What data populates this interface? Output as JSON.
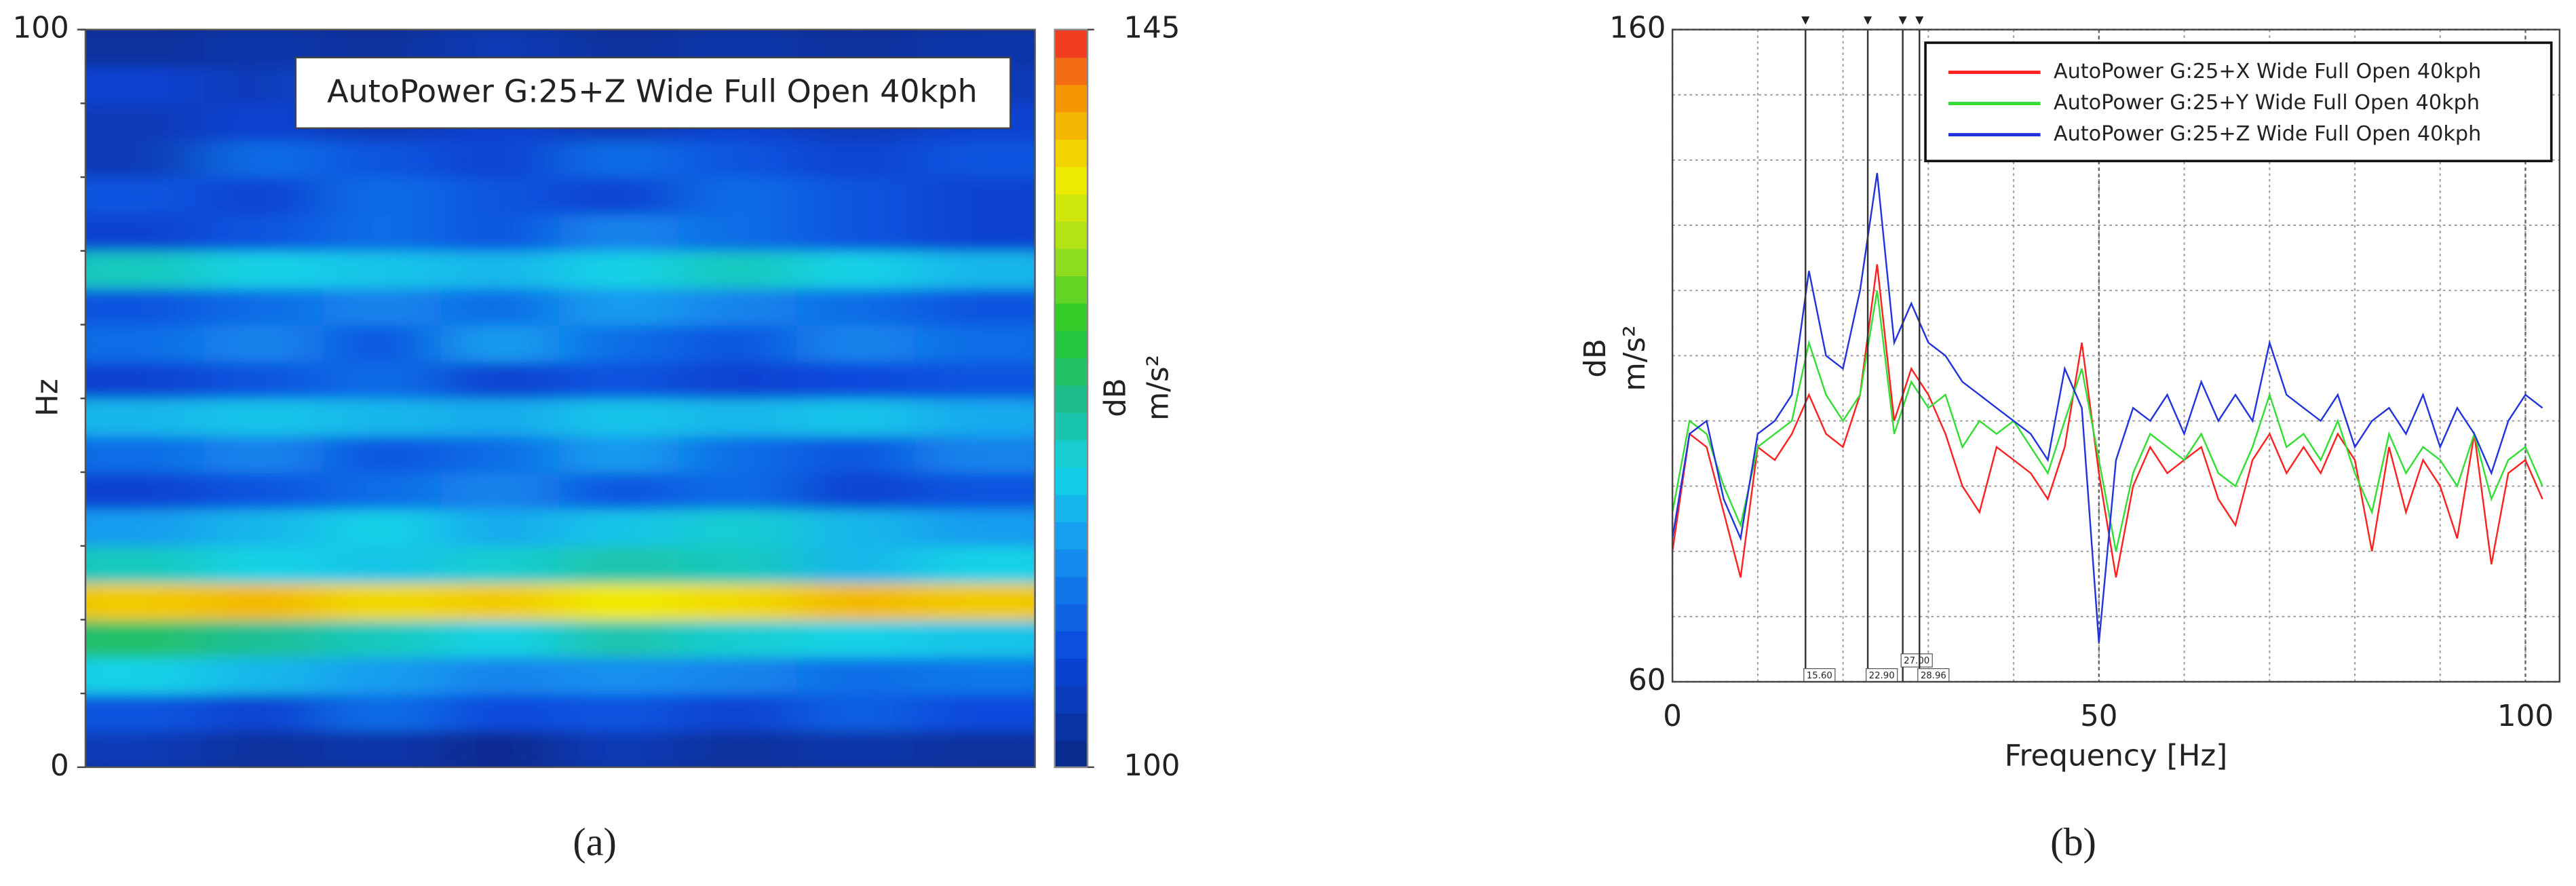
{
  "chart_data": [
    {
      "type": "heatmap",
      "title": "AutoPower G:25+Z Wide Full Open 40kph",
      "ylabel": "Hz",
      "colorbar_label": [
        "dB",
        "m/s²"
      ],
      "panel_label": "(a)",
      "ylim": [
        0,
        100
      ],
      "yticks": [
        0,
        100
      ],
      "clim": [
        100,
        145
      ],
      "cticks": [
        100,
        145
      ],
      "z": [
        [
          104,
          102,
          103,
          101,
          104,
          102,
          103,
          102
        ],
        [
          108,
          106,
          110,
          107,
          108,
          106,
          109,
          107
        ],
        [
          118,
          116,
          114,
          112,
          113,
          112,
          110,
          111
        ],
        [
          124,
          122,
          120,
          118,
          121,
          119,
          118,
          117
        ],
        [
          138,
          139,
          137,
          138,
          136,
          137,
          139,
          138
        ],
        [
          120,
          118,
          117,
          119,
          121,
          120,
          116,
          118
        ],
        [
          114,
          116,
          118,
          115,
          117,
          119,
          116,
          114
        ],
        [
          106,
          108,
          110,
          112,
          108,
          110,
          106,
          108
        ],
        [
          110,
          112,
          108,
          110,
          114,
          110,
          108,
          112
        ],
        [
          116,
          117,
          116,
          115,
          117,
          116,
          117,
          115
        ],
        [
          106,
          108,
          110,
          106,
          108,
          106,
          107,
          108
        ],
        [
          110,
          112,
          108,
          114,
          110,
          108,
          112,
          110
        ],
        [
          108,
          110,
          112,
          110,
          114,
          112,
          110,
          108
        ],
        [
          120,
          118,
          117,
          116,
          118,
          120,
          118,
          116
        ],
        [
          106,
          108,
          110,
          108,
          112,
          110,
          108,
          106
        ],
        [
          108,
          106,
          110,
          108,
          106,
          110,
          108,
          106
        ],
        [
          104,
          110,
          108,
          106,
          110,
          108,
          106,
          108
        ],
        [
          104,
          106,
          104,
          106,
          104,
          106,
          104,
          106
        ],
        [
          106,
          104,
          108,
          104,
          106,
          104,
          108,
          104
        ],
        [
          102,
          103,
          102,
          104,
          102,
          103,
          102,
          103
        ]
      ]
    },
    {
      "type": "line",
      "xlabel": "Frequency [Hz]",
      "ylabel": [
        "dB",
        "m/s²"
      ],
      "panel_label": "(b)",
      "xlim": [
        0,
        104
      ],
      "ylim": [
        60,
        160
      ],
      "xticks": [
        0,
        50,
        100
      ],
      "yticks": [
        60,
        160
      ],
      "grid": true,
      "legend": "upper right",
      "cursors": [
        {
          "value": 15.6,
          "label": "15.60"
        },
        {
          "value": 22.9,
          "label": "22.90"
        },
        {
          "value": 27.0,
          "label": "27.00"
        },
        {
          "value": 28.96,
          "label": "28.96"
        }
      ],
      "x": [
        0,
        2,
        4,
        6,
        8,
        10,
        12,
        14,
        16,
        18,
        20,
        22,
        24,
        26,
        28,
        30,
        32,
        34,
        36,
        38,
        40,
        42,
        44,
        46,
        48,
        50,
        52,
        54,
        56,
        58,
        60,
        62,
        64,
        66,
        68,
        70,
        72,
        74,
        76,
        78,
        80,
        82,
        84,
        86,
        88,
        90,
        92,
        94,
        96,
        98,
        100,
        102
      ],
      "series": [
        {
          "name": "AutoPower G:25+X Wide Full Open 40kph",
          "color": "#ff2020",
          "values": [
            80,
            98,
            96,
            86,
            76,
            96,
            94,
            98,
            104,
            98,
            96,
            104,
            124,
            100,
            108,
            104,
            98,
            90,
            86,
            96,
            94,
            92,
            88,
            96,
            112,
            92,
            76,
            90,
            96,
            92,
            94,
            96,
            88,
            84,
            94,
            98,
            92,
            96,
            92,
            98,
            94,
            80,
            96,
            86,
            94,
            90,
            82,
            98,
            78,
            92,
            94,
            88
          ]
        },
        {
          "name": "AutoPower G:25+Y Wide Full Open 40kph",
          "color": "#33dd33",
          "values": [
            86,
            100,
            98,
            90,
            84,
            96,
            98,
            100,
            112,
            104,
            100,
            104,
            120,
            98,
            106,
            102,
            104,
            96,
            100,
            98,
            100,
            96,
            92,
            100,
            108,
            94,
            80,
            92,
            98,
            96,
            94,
            98,
            92,
            90,
            96,
            104,
            96,
            98,
            94,
            100,
            92,
            86,
            98,
            92,
            96,
            94,
            90,
            98,
            88,
            94,
            96,
            90
          ]
        },
        {
          "name": "AutoPower G:25+Z Wide Full Open 40kph",
          "color": "#2233dd",
          "values": [
            82,
            98,
            100,
            88,
            82,
            98,
            100,
            104,
            123,
            110,
            108,
            120,
            138,
            112,
            118,
            112,
            110,
            106,
            104,
            102,
            100,
            98,
            94,
            108,
            102,
            66,
            94,
            102,
            100,
            104,
            98,
            106,
            100,
            104,
            100,
            112,
            104,
            102,
            100,
            104,
            96,
            100,
            102,
            98,
            104,
            96,
            102,
            98,
            92,
            100,
            104,
            102
          ]
        }
      ]
    }
  ]
}
